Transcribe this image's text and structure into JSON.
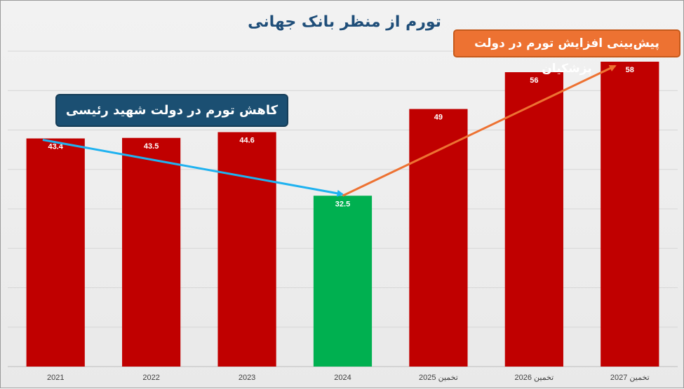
{
  "header": {
    "title": "تورم از منظر بانک جهانی"
  },
  "annotations": {
    "decrease_label": "کاهش تورم در دولت شهید رئیسی",
    "increase_label": "پیش‌بینی افزایش تورم در دولت پزشکیان"
  },
  "colors": {
    "bar_default": "#c00000",
    "bar_highlight": "#00b050",
    "arrow_decrease": "#1fb2f0",
    "arrow_increase": "#ed7232",
    "callout_blue": "#1b4f72",
    "callout_orange": "#ed7232"
  },
  "chart_data": {
    "type": "bar",
    "title": "تورم از منظر بانک جهانی",
    "categories": [
      "2021",
      "2022",
      "2023",
      "2024",
      "تخمین 2025",
      "تخمین 2026",
      "تخمین 2027"
    ],
    "values": [
      43.4,
      43.5,
      44.6,
      32.5,
      49,
      56,
      58
    ],
    "data_labels": [
      "43.4",
      "43.5",
      "44.6",
      "32.5",
      "49",
      "56",
      "58"
    ],
    "highlighted_category": "2024",
    "ylim": [
      0,
      60
    ],
    "y_gridline_step": 7.5,
    "y_tick_labels_shown": false,
    "grid": true,
    "xlabel": "",
    "ylabel": "",
    "arrows": [
      {
        "name": "decrease",
        "from_category": "2021",
        "to_category": "2024"
      },
      {
        "name": "increase",
        "from_category": "2024",
        "to_category": "تخمین 2027"
      }
    ]
  }
}
